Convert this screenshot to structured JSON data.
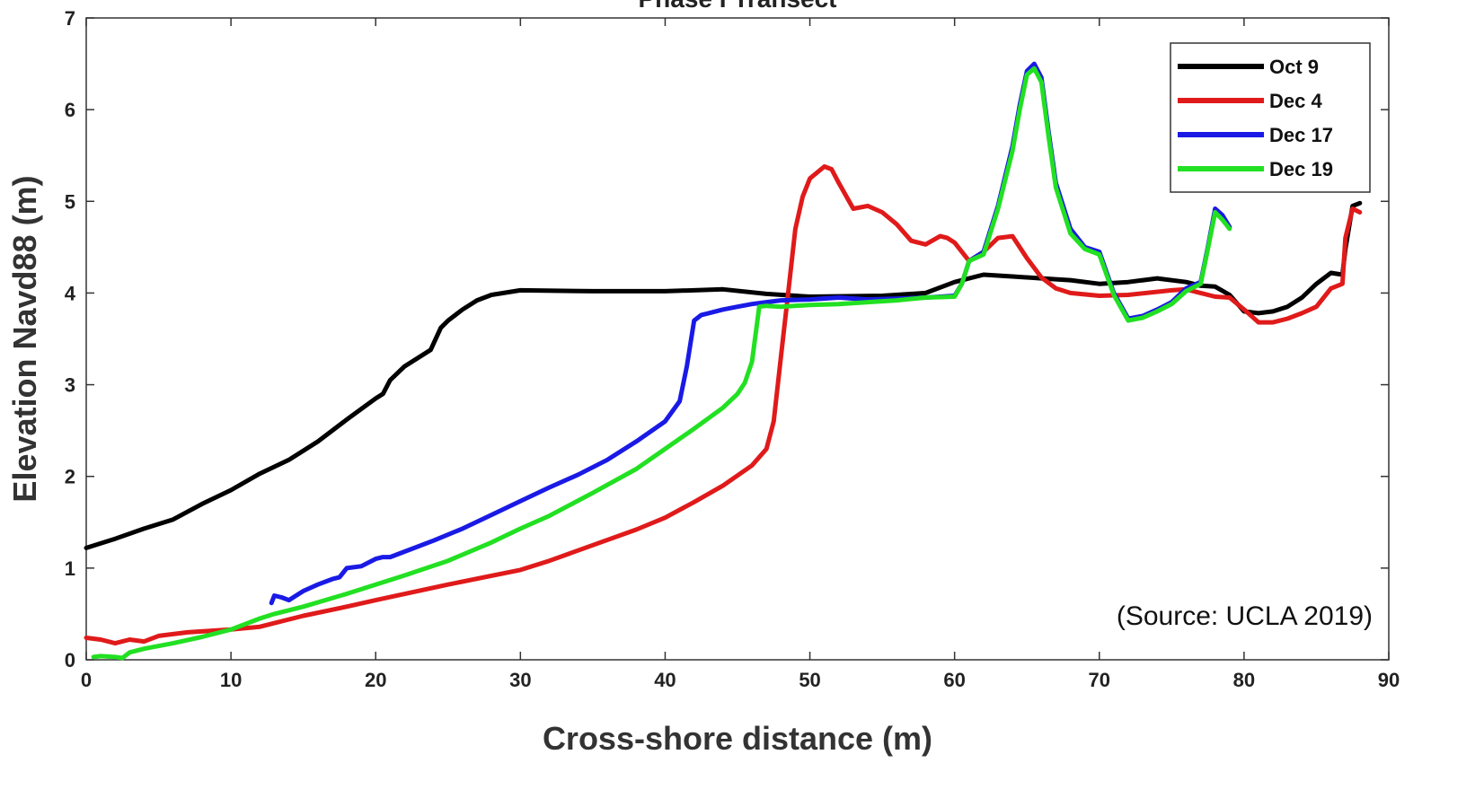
{
  "chart_data": {
    "type": "line",
    "title": "Phase I Transect",
    "xlabel": "Cross-shore distance (m)",
    "ylabel": "Elevation Navd88 (m)",
    "xlim": [
      0,
      90
    ],
    "ylim": [
      0,
      7
    ],
    "xticks": [
      "0",
      "10",
      "20",
      "30",
      "40",
      "50",
      "60",
      "70",
      "80",
      "90"
    ],
    "yticks": [
      "0",
      "1",
      "2",
      "3",
      "4",
      "5",
      "6",
      "7"
    ],
    "grid": false,
    "legend_position": "top-right",
    "annotation": "(Source: UCLA 2019)",
    "series": [
      {
        "name": "Oct 9",
        "color": "#000000",
        "x": [
          0,
          2,
          4,
          6,
          8,
          10,
          12,
          14,
          16,
          18,
          20,
          20.5,
          21,
          22,
          23,
          23.8,
          24.5,
          25,
          26,
          27,
          28,
          30,
          35,
          40,
          44,
          47,
          50,
          55,
          58,
          60,
          62,
          64,
          66,
          68,
          70,
          72,
          74,
          76,
          77,
          78,
          79,
          80,
          81,
          82,
          83,
          84,
          85,
          86,
          86.8,
          87,
          87.5,
          88
        ],
        "y": [
          1.22,
          1.32,
          1.43,
          1.53,
          1.7,
          1.85,
          2.03,
          2.18,
          2.38,
          2.62,
          2.85,
          2.9,
          3.05,
          3.2,
          3.3,
          3.38,
          3.62,
          3.7,
          3.82,
          3.92,
          3.98,
          4.03,
          4.02,
          4.02,
          4.04,
          3.99,
          3.96,
          3.97,
          4.0,
          4.12,
          4.2,
          4.18,
          4.16,
          4.14,
          4.1,
          4.12,
          4.16,
          4.12,
          4.08,
          4.07,
          3.98,
          3.8,
          3.78,
          3.8,
          3.85,
          3.95,
          4.1,
          4.22,
          4.2,
          4.48,
          4.95,
          4.98
        ]
      },
      {
        "name": "Dec 4",
        "color": "#e01a1a",
        "x": [
          0,
          1,
          2,
          3,
          4,
          5,
          7,
          10,
          12,
          15,
          18,
          20,
          25,
          30,
          32,
          35,
          38,
          40,
          42,
          44,
          46,
          47,
          47.5,
          48,
          48.5,
          49,
          49.5,
          50,
          51,
          51.5,
          52,
          53,
          54,
          55,
          56,
          57,
          58,
          59,
          59.5,
          60,
          61,
          62,
          63,
          64,
          65,
          66,
          67,
          68,
          70,
          72,
          75,
          76,
          77,
          78,
          79,
          80,
          81,
          82,
          83,
          84,
          85,
          86,
          86.8,
          87,
          87.5,
          88
        ],
        "y": [
          0.24,
          0.22,
          0.18,
          0.22,
          0.2,
          0.26,
          0.3,
          0.33,
          0.36,
          0.48,
          0.58,
          0.65,
          0.82,
          0.98,
          1.08,
          1.25,
          1.42,
          1.55,
          1.72,
          1.9,
          2.12,
          2.3,
          2.6,
          3.3,
          4.0,
          4.7,
          5.05,
          5.25,
          5.38,
          5.35,
          5.2,
          4.92,
          4.95,
          4.88,
          4.75,
          4.57,
          4.53,
          4.62,
          4.6,
          4.55,
          4.35,
          4.45,
          4.6,
          4.62,
          4.38,
          4.17,
          4.05,
          4.0,
          3.97,
          3.98,
          4.03,
          4.04,
          4.0,
          3.96,
          3.95,
          3.82,
          3.68,
          3.68,
          3.72,
          3.78,
          3.85,
          4.05,
          4.1,
          4.6,
          4.92,
          4.88
        ]
      },
      {
        "name": "Dec 17",
        "color": "#1a1ae6",
        "x": [
          12.8,
          13,
          13.5,
          14,
          14.5,
          15,
          16,
          17,
          17.5,
          18,
          19,
          20,
          20.5,
          21,
          22,
          24,
          26,
          28,
          30,
          32,
          34,
          36,
          38,
          40,
          41,
          41.5,
          42,
          42.5,
          43,
          44,
          45,
          46,
          47,
          48,
          50,
          52,
          54,
          56,
          58,
          60,
          60.5,
          61,
          62,
          63,
          64,
          64.5,
          65,
          65.5,
          66,
          66.5,
          67,
          68,
          69,
          70,
          71,
          72,
          73,
          74,
          75,
          76,
          77,
          77.5,
          78,
          78.5,
          79
        ],
        "y": [
          0.62,
          0.7,
          0.68,
          0.65,
          0.7,
          0.75,
          0.82,
          0.88,
          0.9,
          1.0,
          1.02,
          1.1,
          1.12,
          1.12,
          1.18,
          1.3,
          1.43,
          1.58,
          1.73,
          1.88,
          2.02,
          2.18,
          2.38,
          2.6,
          2.82,
          3.2,
          3.7,
          3.76,
          3.78,
          3.82,
          3.85,
          3.88,
          3.9,
          3.92,
          3.93,
          3.95,
          3.93,
          3.94,
          3.95,
          3.97,
          4.1,
          4.35,
          4.45,
          4.95,
          5.6,
          6.05,
          6.42,
          6.5,
          6.35,
          5.75,
          5.2,
          4.7,
          4.5,
          4.45,
          4.0,
          3.72,
          3.75,
          3.82,
          3.9,
          4.05,
          4.12,
          4.5,
          4.92,
          4.85,
          4.72
        ]
      },
      {
        "name": "Dec 19",
        "color": "#22e022",
        "x": [
          0.5,
          1,
          2,
          2.5,
          3,
          4,
          6,
          8,
          10,
          12,
          13,
          15,
          18,
          20,
          22,
          25,
          28,
          30,
          32,
          35,
          38,
          40,
          42,
          44,
          45,
          45.5,
          46,
          46.5,
          47,
          48,
          50,
          52,
          54,
          56,
          58,
          60,
          60.5,
          61,
          62,
          63,
          64,
          64.5,
          65,
          65.5,
          66,
          66.5,
          67,
          68,
          69,
          70,
          71,
          72,
          73,
          74,
          75,
          76,
          77,
          77.5,
          78,
          78.5,
          79
        ],
        "y": [
          0.03,
          0.04,
          0.03,
          0.02,
          0.08,
          0.12,
          0.18,
          0.25,
          0.33,
          0.45,
          0.5,
          0.58,
          0.72,
          0.82,
          0.92,
          1.08,
          1.28,
          1.43,
          1.57,
          1.82,
          2.08,
          2.3,
          2.52,
          2.75,
          2.9,
          3.02,
          3.25,
          3.85,
          3.86,
          3.85,
          3.87,
          3.88,
          3.9,
          3.92,
          3.95,
          3.96,
          4.1,
          4.35,
          4.42,
          4.92,
          5.55,
          6.0,
          6.38,
          6.45,
          6.3,
          5.7,
          5.15,
          4.65,
          4.48,
          4.42,
          3.98,
          3.7,
          3.73,
          3.8,
          3.88,
          4.02,
          4.1,
          4.48,
          4.88,
          4.8,
          4.7
        ]
      }
    ]
  }
}
